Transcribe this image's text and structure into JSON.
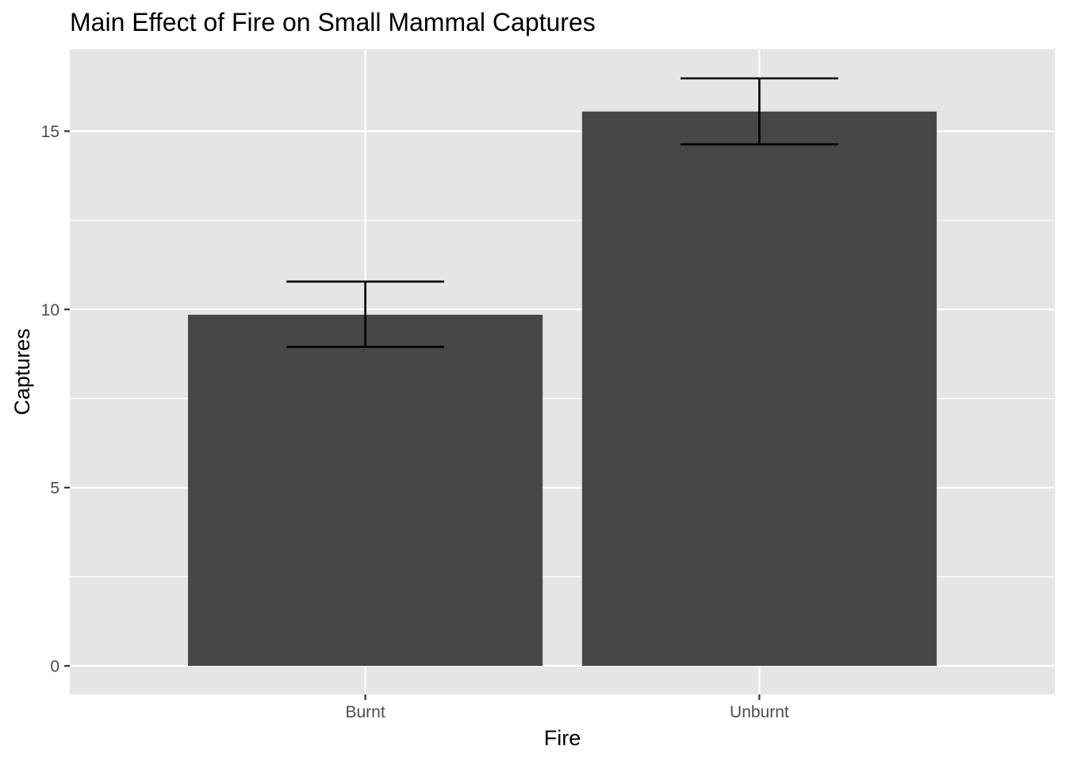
{
  "chart_data": {
    "type": "bar",
    "title": "Main Effect of Fire on Small Mammal Captures",
    "xlabel": "Fire",
    "ylabel": "Captures",
    "categories": [
      "Burnt",
      "Unburnt"
    ],
    "values": [
      9.85,
      15.55
    ],
    "error_bars": [
      {
        "low": 8.95,
        "high": 10.78
      },
      {
        "low": 14.63,
        "high": 16.48
      }
    ],
    "ylim": [
      -0.8,
      17.3
    ],
    "yticks": [
      0,
      5,
      10,
      15
    ],
    "ytick_labels": [
      "0",
      "5",
      "10",
      "15"
    ],
    "grid": true,
    "legend": "none",
    "colors": {
      "panel_background": "#e5e5e5",
      "grid": "#ffffff",
      "bar_fill": "#474747",
      "error_bar": "#000000",
      "tick_label": "#4d4d4d",
      "axis_tick": "#333333"
    }
  }
}
